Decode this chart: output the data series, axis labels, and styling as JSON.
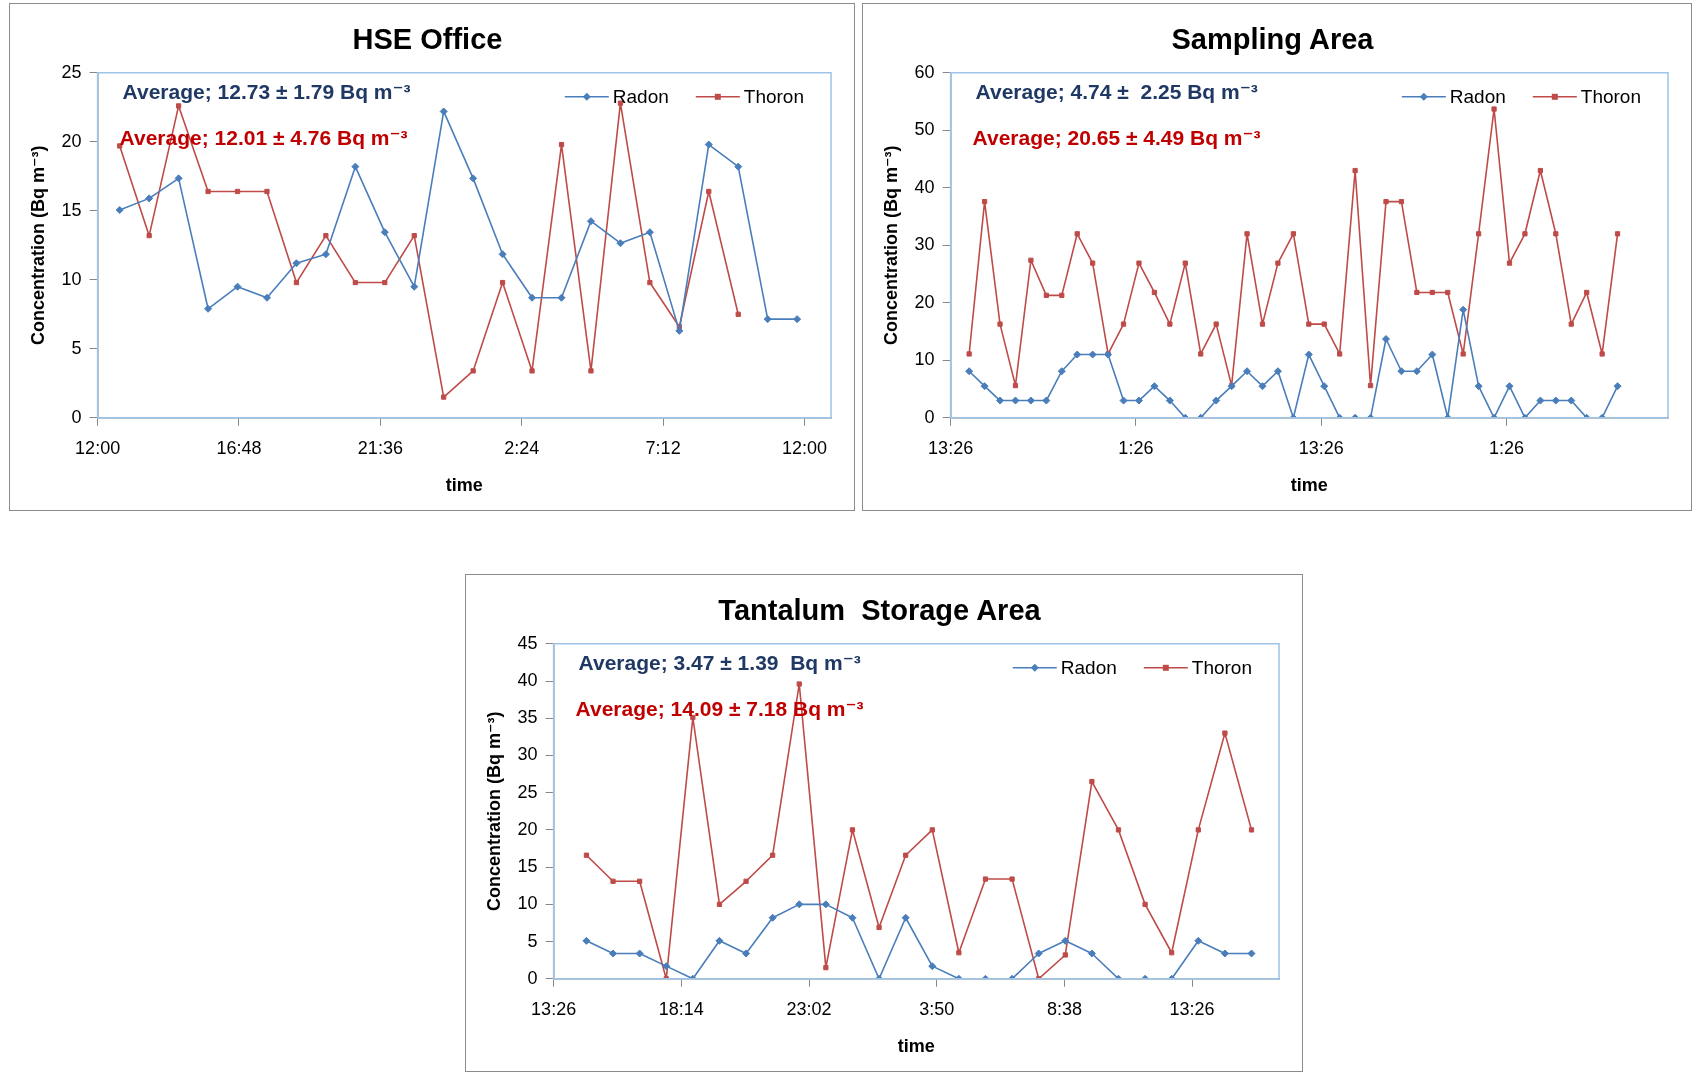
{
  "chart_data": [
    {
      "type": "line",
      "title": "HSE Office",
      "xlabel": "time",
      "ylabel": "Concentration (Bq m⁻³)",
      "x": [
        "--01-01T12:45",
        "--01-01T13:45",
        "--01-01T14:45",
        "--01-01T15:45",
        "--01-01T16:45",
        "--01-01T17:45",
        "--01-01T18:45",
        "--01-01T19:45",
        "--01-01T20:45",
        "--01-01T21:45",
        "--01-01T22:45",
        "--01-01T23:45",
        "--01-02T00:45",
        "--01-02T01:45",
        "--01-02T02:45",
        "--01-02T03:45",
        "--01-02T04:45",
        "--01-02T05:45",
        "--01-02T06:45",
        "--01-02T07:45",
        "--01-02T08:45",
        "--01-02T09:45",
        "--01-02T10:45",
        "--01-02T11:45"
      ],
      "series": [
        {
          "name": "Radon",
          "color": "#4a7ebb",
          "marker": "diamond",
          "values": [
            15.06,
            15.9,
            17.35,
            7.9,
            9.5,
            8.7,
            11.2,
            11.85,
            18.2,
            13.45,
            9.5,
            22.2,
            17.35,
            11.85,
            8.7,
            8.7,
            14.25,
            12.65,
            13.45,
            6.3,
            19.8,
            18.2,
            7.15,
            7.15
          ]
        },
        {
          "name": "Thoron",
          "color": "#be4b48",
          "marker": "square",
          "values": [
            19.7,
            13.2,
            22.6,
            16.4,
            16.4,
            16.4,
            9.8,
            13.2,
            9.8,
            9.8,
            13.2,
            1.5,
            3.4,
            9.8,
            3.4,
            19.8,
            3.4,
            22.8,
            9.8,
            6.6,
            16.4,
            7.5,
            null,
            null
          ]
        }
      ],
      "xlim": [
        "--01-01T12:00",
        "--01-02T12:54"
      ],
      "xticks": [
        {
          "value": "--01-01T12:00",
          "label": "12:00"
        },
        {
          "value": "--01-01T16:48",
          "label": "16:48"
        },
        {
          "value": "--01-01T21:36",
          "label": "21:36"
        },
        {
          "value": "--01-02T02:24",
          "label": "2:24"
        },
        {
          "value": "--01-02T07:12",
          "label": "7:12"
        },
        {
          "value": "--01-02T12:00",
          "label": "12:00"
        }
      ],
      "ylim": [
        0,
        25
      ],
      "yticks": [
        0,
        5,
        10,
        15,
        20,
        25
      ],
      "legend": "top right",
      "grid": false,
      "line_style": "solid",
      "annotations": [
        "Average; 12.73 ± 1.79 Bq m⁻³",
        "Average; 12.01 ± 4.76 Bq m⁻³"
      ]
    },
    {
      "type": "line",
      "title": "Sampling Area",
      "xlabel": "time",
      "ylabel": "Concentration (Bq m⁻³)",
      "x": [
        "--01-01T14:38",
        "--01-01T15:38",
        "--01-01T16:38",
        "--01-01T17:38",
        "--01-01T18:38",
        "--01-01T19:38",
        "--01-01T20:38",
        "--01-01T21:38",
        "--01-01T22:38",
        "--01-01T23:38",
        "--01-02T00:38",
        "--01-02T01:38",
        "--01-02T02:38",
        "--01-02T03:38",
        "--01-02T04:38",
        "--01-02T05:38",
        "--01-02T06:38",
        "--01-02T07:38",
        "--01-02T08:38",
        "--01-02T09:38",
        "--01-02T10:38",
        "--01-02T11:38",
        "--01-02T12:38",
        "--01-02T13:38",
        "--01-02T14:38",
        "--01-02T15:38",
        "--01-02T16:38",
        "--01-02T17:38",
        "--01-02T18:38",
        "--01-02T19:38",
        "--01-02T20:38",
        "--01-02T21:38",
        "--01-02T22:38",
        "--01-02T23:38",
        "--01-03T00:38",
        "--01-03T01:38",
        "--01-03T02:38",
        "--01-03T03:38",
        "--01-03T04:38",
        "--01-03T05:38",
        "--01-03T06:38",
        "--01-03T07:38",
        "--01-03T08:38"
      ],
      "series": [
        {
          "name": "Radon",
          "color": "#4a7ebb",
          "marker": "diamond",
          "values": [
            8.1,
            5.5,
            3,
            3,
            3,
            3,
            8.1,
            11,
            11,
            11,
            3,
            3,
            5.5,
            3,
            0,
            0,
            3,
            5.5,
            8.1,
            5.5,
            8.1,
            0,
            11,
            5.5,
            0,
            0,
            0,
            13.7,
            8.1,
            8.1,
            11,
            0,
            18.8,
            5.5,
            0,
            5.5,
            0,
            3,
            3,
            3,
            0,
            0,
            5.5
          ]
        },
        {
          "name": "Thoron",
          "color": "#be4b48",
          "marker": "square",
          "values": [
            11.1,
            37.6,
            16.3,
            5.6,
            27.4,
            21.3,
            21.3,
            32,
            26.9,
            11.1,
            16.3,
            26.9,
            21.8,
            16.3,
            26.9,
            11.1,
            16.3,
            5.6,
            32,
            16.3,
            26.9,
            32,
            16.3,
            16.3,
            11.1,
            43,
            5.6,
            37.6,
            37.6,
            21.8,
            21.8,
            21.8,
            11.1,
            32,
            53.7,
            26.9,
            32,
            43,
            32,
            16.3,
            21.8,
            11.1,
            32
          ]
        }
      ],
      "xlim": [
        "--01-01T13:26",
        "--01-03T11:54"
      ],
      "xticks": [
        {
          "value": "--01-01T13:26",
          "label": "13:26"
        },
        {
          "value": "--01-02T01:26",
          "label": "1:26"
        },
        {
          "value": "--01-02T13:26",
          "label": "13:26"
        },
        {
          "value": "--01-03T01:26",
          "label": "1:26"
        }
      ],
      "ylim": [
        0,
        60
      ],
      "yticks": [
        0,
        10,
        20,
        30,
        40,
        50,
        60
      ],
      "legend": "top right",
      "grid": false,
      "line_style": "solid",
      "annotations": [
        "Average; 4.74 ±  2.25 Bq m⁻³",
        "Average; 20.65 ± 4.49 Bq m⁻³"
      ]
    },
    {
      "type": "line",
      "title": "Tantalum  Storage Area",
      "xlabel": "time",
      "ylabel": "Concentration (Bq m⁻³)",
      "x": [
        "--01-01T14:40",
        "--01-01T15:40",
        "--01-01T16:40",
        "--01-01T17:40",
        "--01-01T18:40",
        "--01-01T19:40",
        "--01-01T20:40",
        "--01-01T21:40",
        "--01-01T22:40",
        "--01-01T23:40",
        "--01-02T00:40",
        "--01-02T01:40",
        "--01-02T02:40",
        "--01-02T03:40",
        "--01-02T04:40",
        "--01-02T05:40",
        "--01-02T06:40",
        "--01-02T07:40",
        "--01-02T08:40",
        "--01-02T09:40",
        "--01-02T10:40",
        "--01-02T11:40",
        "--01-02T12:40",
        "--01-02T13:40",
        "--01-02T14:40",
        "--01-02T15:40"
      ],
      "series": [
        {
          "name": "Radon",
          "color": "#4a7ebb",
          "marker": "diamond",
          "values": [
            5.1,
            3.4,
            3.4,
            1.7,
            0,
            5.1,
            3.4,
            8.2,
            10,
            10,
            8.2,
            0,
            8.2,
            1.7,
            0,
            0,
            0,
            3.4,
            5.1,
            3.4,
            0,
            0,
            0,
            5.1,
            3.4,
            3.4
          ]
        },
        {
          "name": "Thoron",
          "color": "#be4b48",
          "marker": "square",
          "values": [
            16.6,
            13.1,
            13.1,
            0,
            35.1,
            10,
            13.1,
            16.6,
            39.6,
            1.5,
            20,
            6.9,
            16.6,
            20,
            3.5,
            13.4,
            13.4,
            0,
            3.2,
            26.5,
            20,
            10,
            3.5,
            20,
            33,
            20
          ]
        }
      ],
      "xlim": [
        "--01-01T13:26",
        "--01-02T16:42"
      ],
      "xticks": [
        {
          "value": "--01-01T13:26",
          "label": "13:26"
        },
        {
          "value": "--01-01T18:14",
          "label": "18:14"
        },
        {
          "value": "--01-01T23:02",
          "label": "23:02"
        },
        {
          "value": "--01-02T03:50",
          "label": "3:50"
        },
        {
          "value": "--01-02T08:38",
          "label": "8:38"
        },
        {
          "value": "--01-02T13:26",
          "label": "13:26"
        }
      ],
      "ylim": [
        0,
        45
      ],
      "yticks": [
        0,
        5,
        10,
        15,
        20,
        25,
        30,
        35,
        40,
        45
      ],
      "legend": "top right",
      "grid": false,
      "line_style": "solid",
      "annotations": [
        "Average; 3.47 ± 1.39  Bq m⁻³",
        "Average; 14.09 ± 7.18 Bq m⁻³"
      ]
    }
  ]
}
